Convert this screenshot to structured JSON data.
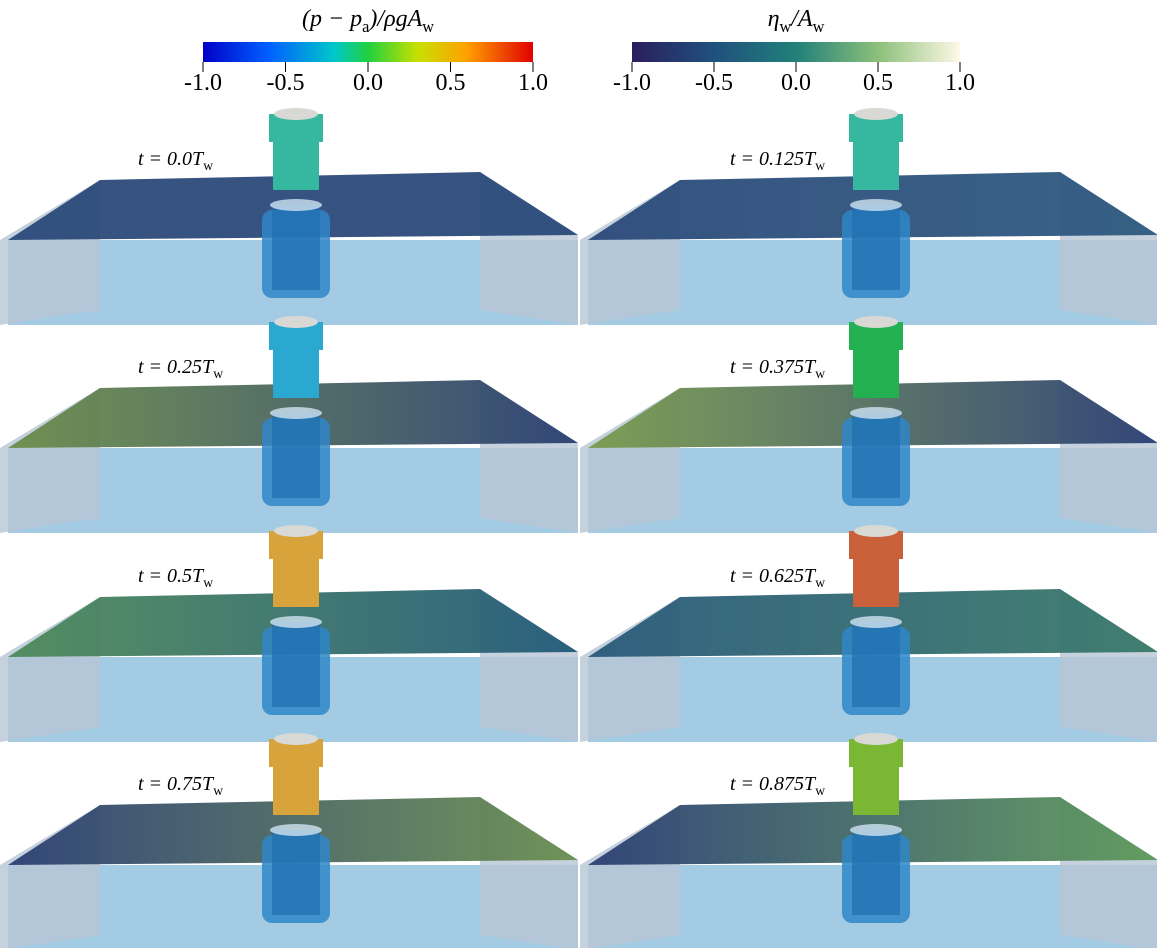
{
  "colorbars": [
    {
      "title": [
        "(p − p",
        "a",
        ")/ρgA",
        "w"
      ],
      "ticks": [
        {
          "value": -1,
          "label": "-1.0"
        },
        {
          "value": -0.5,
          "label": "-0.5"
        },
        {
          "value": 0,
          "label": "0.0"
        },
        {
          "value": 0.5,
          "label": "0.5"
        },
        {
          "value": 1,
          "label": "1.0"
        }
      ],
      "lim": [
        -1,
        1
      ]
    },
    {
      "title": [
        "η",
        "w",
        "/A",
        "w"
      ],
      "ticks": [
        {
          "value": -1,
          "label": "-1.0"
        },
        {
          "value": -0.5,
          "label": "-0.5"
        },
        {
          "value": 0,
          "label": "0.0"
        },
        {
          "value": 0.5,
          "label": "0.5"
        },
        {
          "value": 1,
          "label": "1.0"
        }
      ],
      "lim": [
        -1,
        1
      ]
    }
  ],
  "panels": [
    {
      "label": [
        "t = 0.0T",
        "w"
      ]
    },
    {
      "label": [
        "t = 0.125T",
        "w"
      ]
    },
    {
      "label": [
        "t = 0.25T",
        "w"
      ]
    },
    {
      "label": [
        "t = 0.375T",
        "w"
      ]
    },
    {
      "label": [
        "t = 0.5T",
        "w"
      ]
    },
    {
      "label": [
        "t = 0.625T",
        "w"
      ]
    },
    {
      "label": [
        "t = 0.75T",
        "w"
      ]
    },
    {
      "label": [
        "t = 0.875T",
        "w"
      ]
    }
  ]
}
